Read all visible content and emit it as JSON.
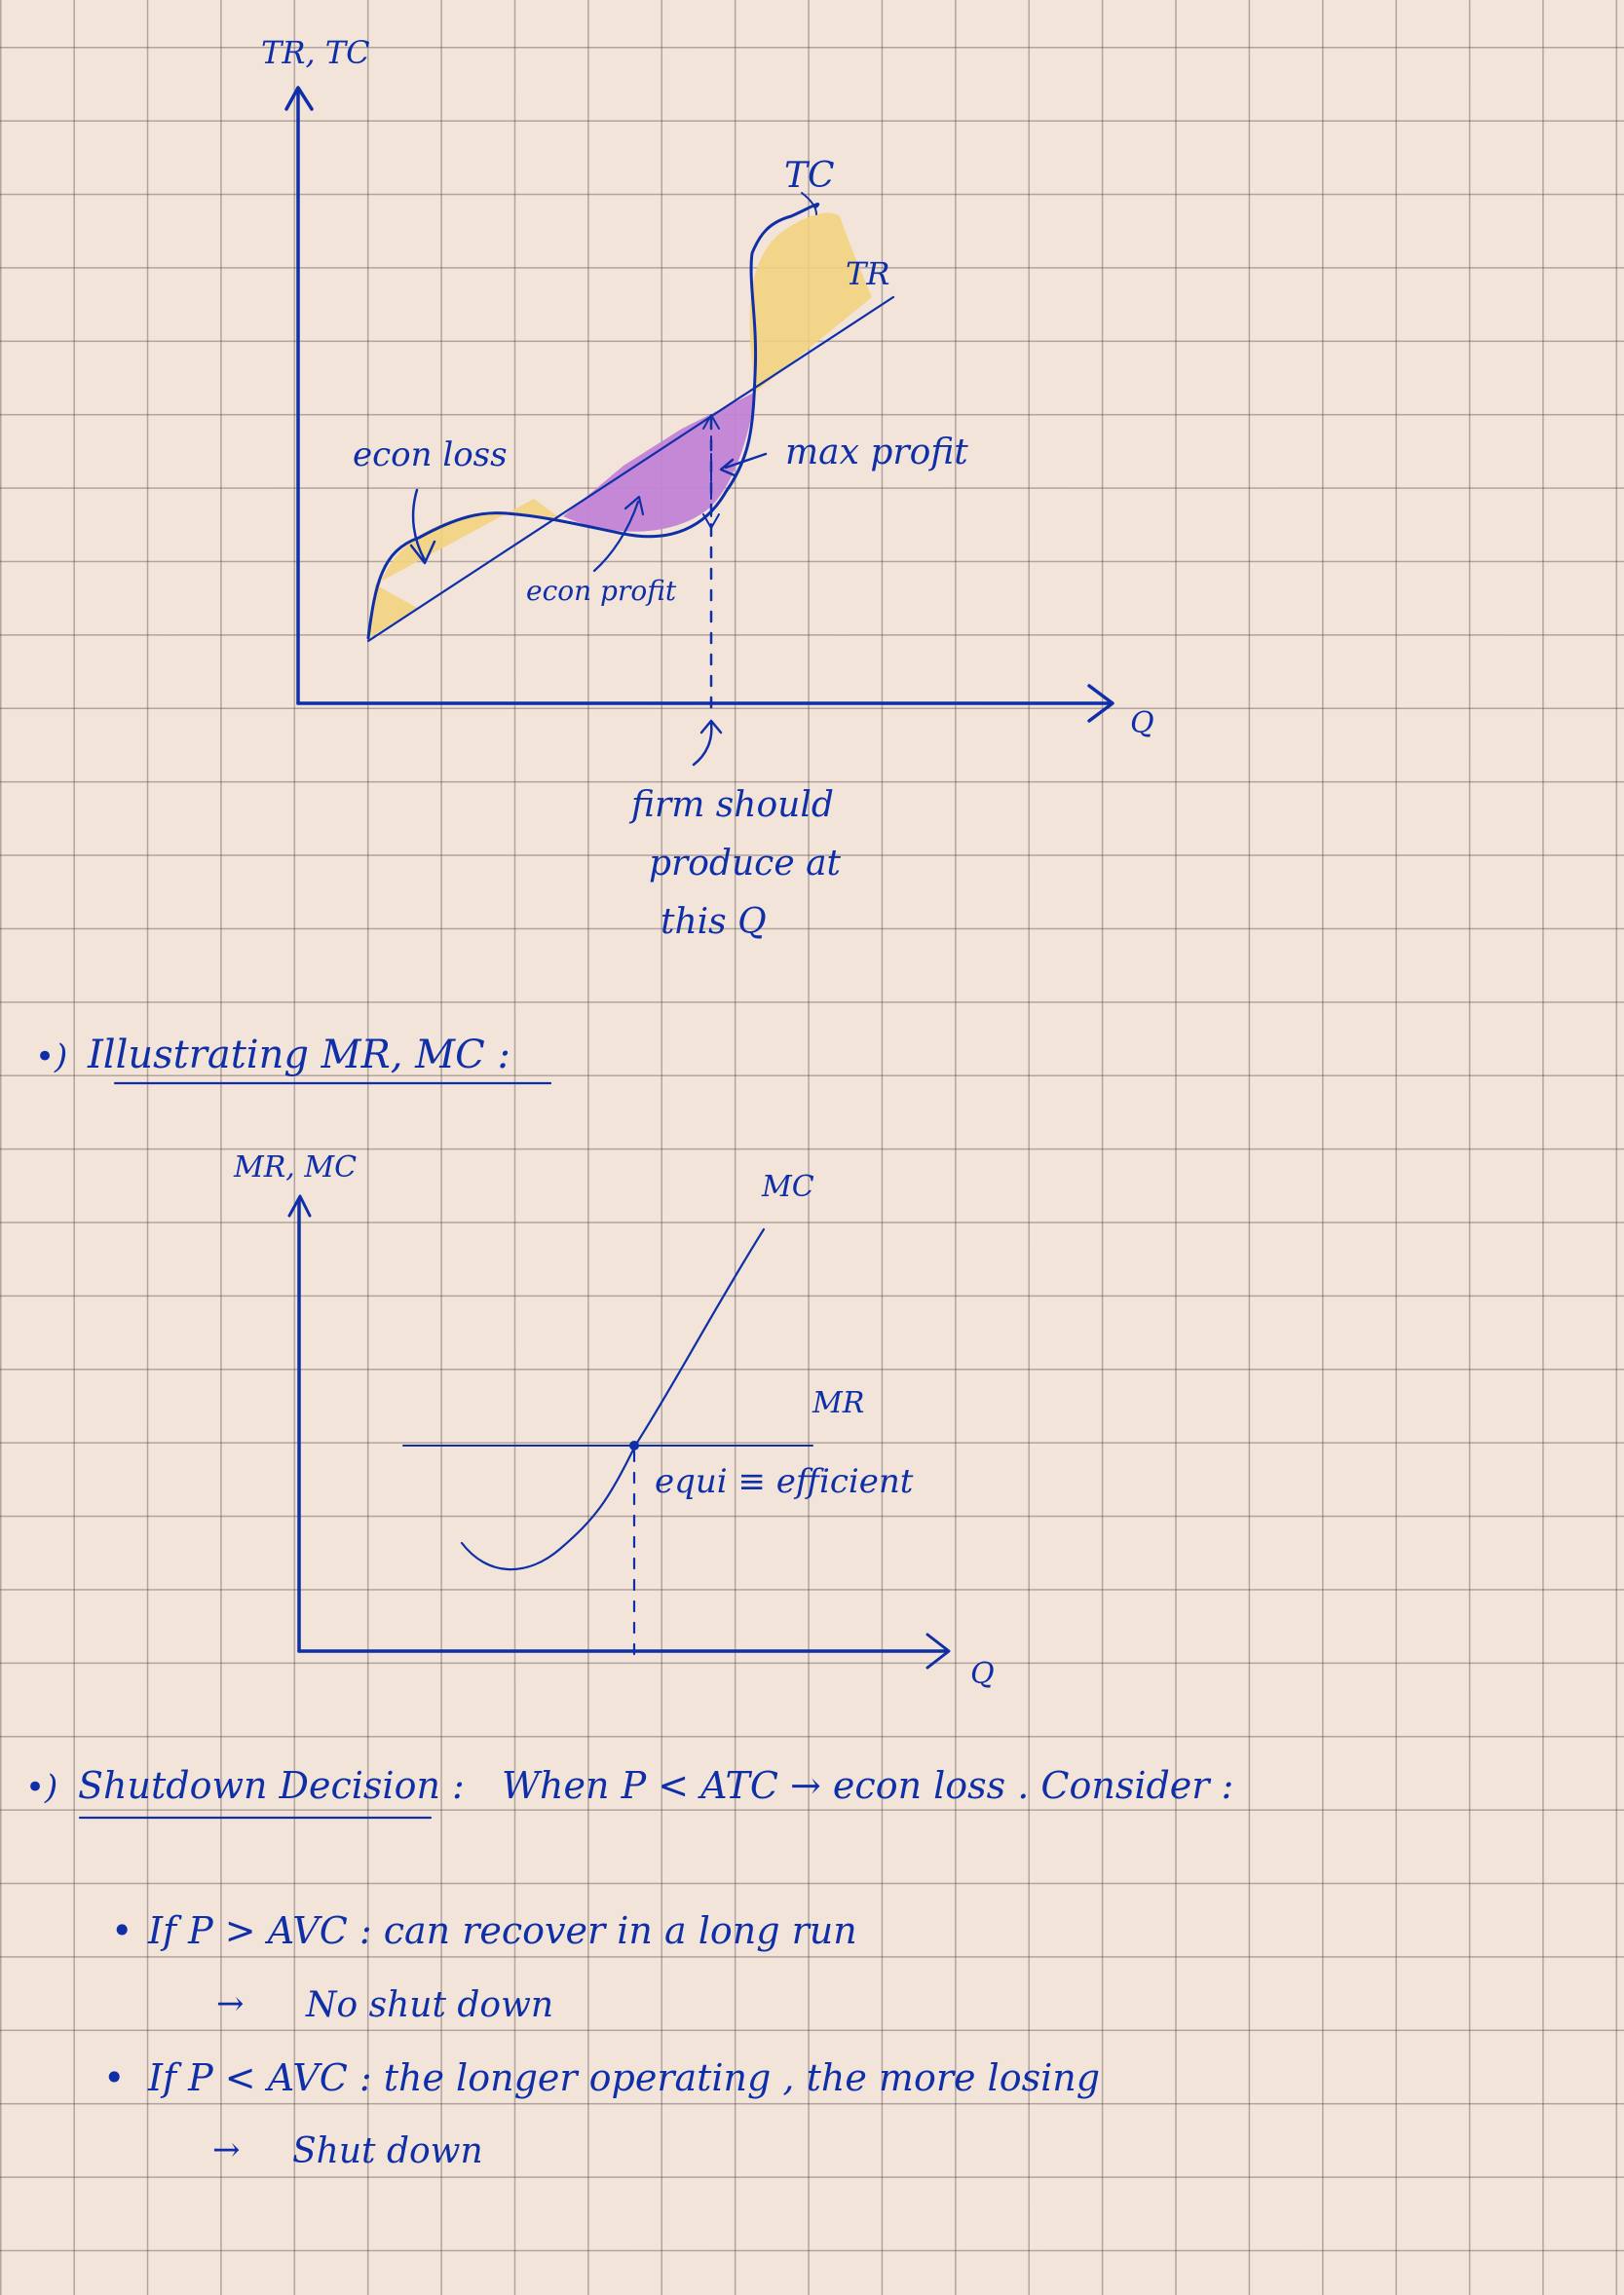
{
  "graph1": {
    "y_axis_label": "TR, TC",
    "x_axis_label": "Q",
    "tc_label": "TC",
    "tr_label": "TR",
    "econ_loss_label": "econ loss",
    "max_profit_label": "max profit",
    "econ_profit_label": "econ profit",
    "firm_note_line1": "firm should",
    "firm_note_line2": "produce at",
    "firm_note_line3": "this Q"
  },
  "section_mr_mc": {
    "bullet": "•)",
    "heading": "Illustrating MR, MC :"
  },
  "graph2": {
    "y_axis_label": "MR, MC",
    "x_axis_label": "Q",
    "mc_label": "MC",
    "mr_label": "MR",
    "equilibrium_label": "equi ≡ efficient"
  },
  "section_shutdown": {
    "bullet": "•)",
    "heading": "Shutdown Decision :",
    "intro": "When P < ATC → econ loss . Consider :",
    "case1_line": "If P > AVC : can recover in a long run",
    "case1_result": "No shut down",
    "case2_line": "If P < AVC : the longer operating , the more losing",
    "case2_result": "Shut down"
  },
  "colors": {
    "ink": "#0f2fa8",
    "loss_highlight": "#f2d37e",
    "profit_highlight": "#c283d6",
    "paper": "#f3e4da"
  }
}
